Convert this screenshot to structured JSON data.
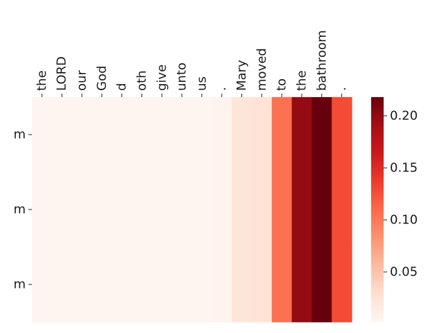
{
  "chart_data": {
    "type": "heatmap",
    "x_tokens": [
      "the",
      "LORD",
      "our",
      "God",
      "d",
      "oth",
      "give",
      "unto",
      "us",
      ".",
      "Mary",
      "moved",
      "to",
      "the",
      "bathroom",
      "."
    ],
    "y_tokens": [
      "m",
      "m",
      "m"
    ],
    "values": [
      [
        0.002,
        0.002,
        0.002,
        0.002,
        0.002,
        0.002,
        0.002,
        0.002,
        0.002,
        0.004,
        0.022,
        0.025,
        0.105,
        0.198,
        0.218,
        0.128
      ],
      [
        0.002,
        0.002,
        0.002,
        0.002,
        0.002,
        0.002,
        0.002,
        0.002,
        0.002,
        0.004,
        0.022,
        0.025,
        0.105,
        0.198,
        0.218,
        0.128
      ],
      [
        0.002,
        0.002,
        0.002,
        0.002,
        0.002,
        0.002,
        0.002,
        0.002,
        0.002,
        0.004,
        0.022,
        0.025,
        0.105,
        0.198,
        0.218,
        0.128
      ]
    ],
    "colormap": "Reds",
    "vmin": 0.002,
    "vmax": 0.218,
    "colorbar_ticks": [
      0.05,
      0.1,
      0.15,
      0.2
    ],
    "colorbar_tick_labels": [
      "0.05",
      "0.10",
      "0.15",
      "0.20"
    ],
    "x_labels_position": "top",
    "title": "",
    "xlabel": "",
    "ylabel": ""
  }
}
